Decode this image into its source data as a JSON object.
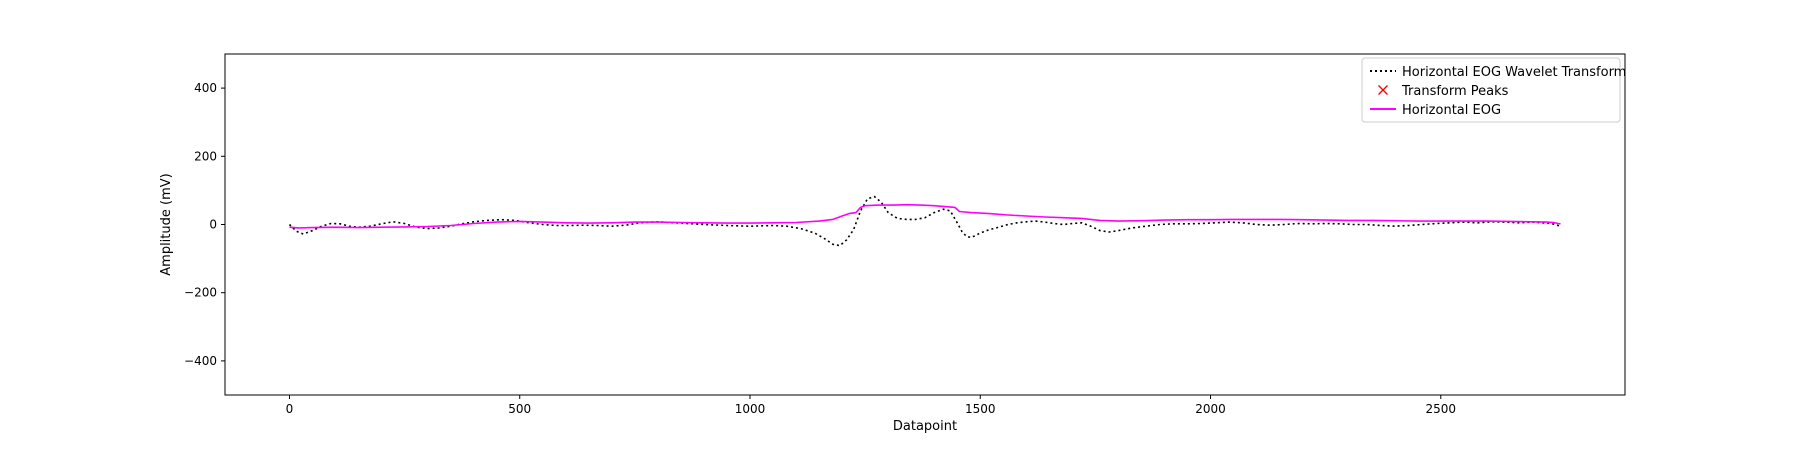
{
  "chart_data": {
    "type": "line",
    "title": "",
    "xlabel": "Datapoint",
    "ylabel": "Amplitude (mV)",
    "xlim": [
      -140,
      2900
    ],
    "ylim": [
      -500,
      500
    ],
    "xticks": [
      0,
      500,
      1000,
      1500,
      2000,
      2500
    ],
    "yticks": [
      -400,
      -200,
      0,
      200,
      400
    ],
    "xtick_labels": [
      "0",
      "500",
      "1000",
      "1500",
      "2000",
      "2500"
    ],
    "ytick_labels": [
      "−400",
      "−200",
      "0",
      "200",
      "400"
    ],
    "grid": false,
    "legend_position": "top-right",
    "series": [
      {
        "name": "Horizontal EOG Wavelet Transform",
        "color": "#000000",
        "style": "dotted",
        "x": [
          0,
          15,
          30,
          50,
          70,
          90,
          110,
          130,
          150,
          175,
          200,
          225,
          250,
          275,
          300,
          325,
          350,
          375,
          400,
          430,
          460,
          490,
          520,
          550,
          580,
          610,
          640,
          670,
          700,
          730,
          760,
          800,
          850,
          900,
          950,
          1000,
          1050,
          1080,
          1110,
          1140,
          1160,
          1180,
          1195,
          1210,
          1225,
          1240,
          1255,
          1270,
          1285,
          1300,
          1320,
          1340,
          1360,
          1380,
          1400,
          1420,
          1435,
          1450,
          1460,
          1470,
          1480,
          1490,
          1500,
          1520,
          1540,
          1560,
          1580,
          1600,
          1620,
          1640,
          1660,
          1680,
          1700,
          1720,
          1740,
          1760,
          1780,
          1800,
          1830,
          1860,
          1890,
          1920,
          1950,
          1980,
          2010,
          2040,
          2070,
          2100,
          2130,
          2160,
          2190,
          2220,
          2250,
          2280,
          2310,
          2340,
          2370,
          2400,
          2430,
          2460,
          2490,
          2520,
          2550,
          2580,
          2610,
          2640,
          2670,
          2700,
          2720,
          2740,
          2760
        ],
        "y": [
          0,
          -20,
          -28,
          -18,
          -5,
          3,
          2,
          -5,
          -8,
          -5,
          2,
          8,
          3,
          -8,
          -12,
          -10,
          -5,
          2,
          8,
          12,
          14,
          12,
          5,
          0,
          -3,
          -3,
          -2,
          -3,
          -5,
          -2,
          5,
          8,
          4,
          0,
          -3,
          -5,
          -3,
          -5,
          -12,
          -25,
          -40,
          -58,
          -62,
          -45,
          -15,
          40,
          75,
          82,
          65,
          35,
          18,
          15,
          15,
          20,
          35,
          45,
          40,
          5,
          -20,
          -35,
          -38,
          -32,
          -25,
          -15,
          -8,
          0,
          5,
          8,
          10,
          7,
          3,
          0,
          3,
          5,
          -5,
          -18,
          -22,
          -18,
          -10,
          -5,
          0,
          2,
          2,
          3,
          5,
          7,
          5,
          0,
          -2,
          0,
          3,
          2,
          3,
          2,
          0,
          0,
          -3,
          -5,
          -3,
          0,
          3,
          5,
          7,
          5,
          8,
          7,
          5,
          7,
          5,
          3,
          -5
        ],
        "peaks": false
      },
      {
        "name": "Transform Peaks",
        "color": "#ff0000",
        "style": "marker-x",
        "x": [],
        "y": []
      },
      {
        "name": "Horizontal EOG",
        "color": "#ff00ff",
        "style": "solid",
        "x": [
          0,
          20,
          50,
          100,
          150,
          200,
          250,
          300,
          350,
          400,
          450,
          500,
          550,
          600,
          650,
          700,
          750,
          800,
          850,
          900,
          950,
          1000,
          1050,
          1100,
          1150,
          1180,
          1200,
          1215,
          1230,
          1240,
          1250,
          1280,
          1310,
          1340,
          1370,
          1400,
          1430,
          1445,
          1455,
          1480,
          1520,
          1560,
          1600,
          1640,
          1680,
          1720,
          1760,
          1800,
          1850,
          1900,
          1950,
          2000,
          2050,
          2100,
          2150,
          2200,
          2250,
          2300,
          2350,
          2400,
          2450,
          2500,
          2550,
          2600,
          2650,
          2700,
          2730,
          2745,
          2755,
          2760
        ],
        "y": [
          -8,
          -10,
          -9,
          -8,
          -9,
          -8,
          -7,
          -6,
          -3,
          3,
          7,
          9,
          7,
          5,
          4,
          5,
          7,
          7,
          6,
          5,
          4,
          4,
          5,
          6,
          10,
          15,
          25,
          32,
          35,
          50,
          55,
          57,
          57,
          58,
          57,
          55,
          52,
          50,
          38,
          35,
          32,
          28,
          25,
          22,
          20,
          18,
          12,
          10,
          11,
          13,
          14,
          14,
          15,
          15,
          15,
          14,
          13,
          12,
          12,
          11,
          10,
          10,
          10,
          10,
          9,
          8,
          7,
          6,
          3,
          2
        ]
      }
    ]
  }
}
